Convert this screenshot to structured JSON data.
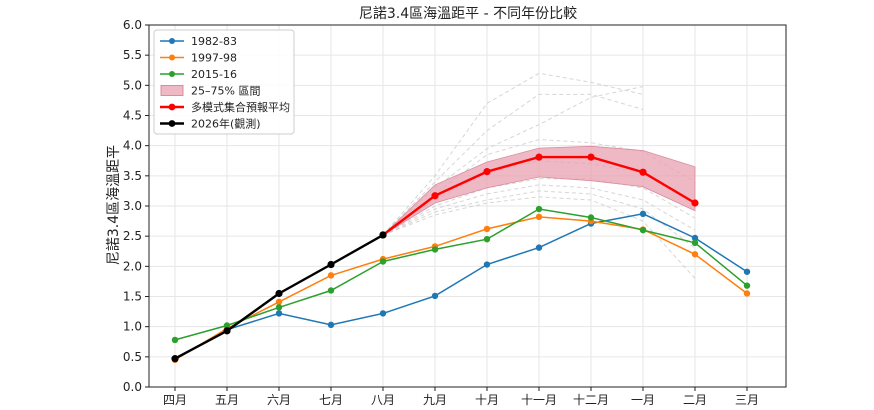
{
  "chart_data": {
    "type": "line",
    "title": "尼諾3.4區海溫距平 - 不同年份比較",
    "xlabel": "",
    "ylabel": "尼諾3.4區海溫距平",
    "categories": [
      "四月",
      "五月",
      "六月",
      "七月",
      "八月",
      "九月",
      "十月",
      "十一月",
      "十二月",
      "一月",
      "二月",
      "三月"
    ],
    "ylim": [
      0.0,
      6.0
    ],
    "yticks": [
      "0.0",
      "0.5",
      "1.0",
      "1.5",
      "2.0",
      "2.5",
      "3.0",
      "3.5",
      "4.0",
      "4.5",
      "5.0",
      "5.5",
      "6.0"
    ],
    "grid": true,
    "legend_position": "top-left",
    "series": [
      {
        "name": "1982-83",
        "color": "#1f77b4",
        "values": [
          0.47,
          0.95,
          1.22,
          1.03,
          1.22,
          1.51,
          2.03,
          2.31,
          2.71,
          2.87,
          2.47,
          1.91
        ]
      },
      {
        "name": "1997-98",
        "color": "#ff7f0e",
        "values": [
          0.45,
          0.97,
          1.41,
          1.85,
          2.12,
          2.33,
          2.62,
          2.82,
          2.75,
          2.61,
          2.2,
          1.55
        ]
      },
      {
        "name": "2015-16",
        "color": "#2ca02c",
        "values": [
          0.78,
          1.02,
          1.32,
          1.6,
          2.08,
          2.28,
          2.45,
          2.95,
          2.81,
          2.6,
          2.39,
          1.68
        ]
      },
      {
        "name": "多模式集合預報平均",
        "color": "#ff0000",
        "values": [
          null,
          null,
          null,
          null,
          2.52,
          3.17,
          3.57,
          3.81,
          3.81,
          3.56,
          3.05,
          null
        ]
      },
      {
        "name": "2026年(觀測)",
        "color": "#000000",
        "values": [
          0.47,
          0.93,
          1.55,
          2.03,
          2.52,
          null,
          null,
          null,
          null,
          null,
          null,
          null
        ]
      }
    ],
    "band": {
      "name": "25–75% 區間",
      "color": "#e8a0b0",
      "lower": [
        null,
        null,
        null,
        null,
        2.52,
        3.05,
        3.3,
        3.48,
        3.42,
        3.32,
        2.92,
        null
      ],
      "upper": [
        null,
        null,
        null,
        null,
        2.52,
        3.35,
        3.73,
        3.96,
        3.99,
        3.92,
        3.65,
        null
      ]
    },
    "ensemble_members": [
      [
        null,
        null,
        null,
        null,
        2.52,
        3.5,
        4.7,
        5.2,
        5.05,
        4.85,
        null,
        null
      ],
      [
        null,
        null,
        null,
        null,
        2.52,
        3.4,
        4.25,
        4.85,
        4.85,
        4.6,
        null,
        null
      ],
      [
        null,
        null,
        null,
        null,
        2.52,
        3.3,
        3.95,
        4.35,
        4.8,
        4.98,
        null,
        null
      ],
      [
        null,
        null,
        null,
        null,
        2.52,
        3.2,
        3.85,
        4.1,
        4.05,
        3.9,
        3.4,
        null
      ],
      [
        null,
        null,
        null,
        null,
        2.52,
        3.1,
        3.55,
        3.75,
        3.7,
        3.55,
        3.0,
        null
      ],
      [
        null,
        null,
        null,
        null,
        2.52,
        3.0,
        3.3,
        3.45,
        3.45,
        3.3,
        2.8,
        null
      ],
      [
        null,
        null,
        null,
        null,
        2.52,
        2.95,
        3.2,
        3.35,
        3.3,
        3.1,
        2.6,
        null
      ],
      [
        null,
        null,
        null,
        null,
        2.52,
        2.9,
        3.1,
        3.25,
        3.2,
        2.95,
        2.3,
        null
      ],
      [
        null,
        null,
        null,
        null,
        2.52,
        2.85,
        3.05,
        3.15,
        3.1,
        2.75,
        1.8,
        null
      ]
    ],
    "legend": [
      {
        "label": "1982-83",
        "kind": "line",
        "color": "#1f77b4"
      },
      {
        "label": "1997-98",
        "kind": "line",
        "color": "#ff7f0e"
      },
      {
        "label": "2015-16",
        "kind": "line",
        "color": "#2ca02c"
      },
      {
        "label": "25–75% 區間",
        "kind": "patch",
        "color": "#e8a0b0"
      },
      {
        "label": "多模式集合預報平均",
        "kind": "line",
        "color": "#ff0000"
      },
      {
        "label": "2026年(觀測)",
        "kind": "line",
        "color": "#000000"
      }
    ]
  }
}
